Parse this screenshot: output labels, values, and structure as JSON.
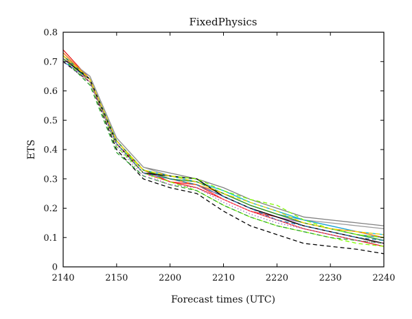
{
  "chart_data": {
    "type": "line",
    "title": "FixedPhysics",
    "xlabel": "Forecast times (UTC)",
    "ylabel": "ETS",
    "xlim": [
      2140,
      2240
    ],
    "ylim": [
      0,
      0.8
    ],
    "xticks": [
      "2140",
      "2150",
      "2200",
      "2210",
      "2220",
      "2230",
      "2240"
    ],
    "yticks": [
      "0",
      "0.1",
      "0.2",
      "0.3",
      "0.4",
      "0.5",
      "0.6",
      "0.7",
      "0.8"
    ],
    "grid": false,
    "legend": "none",
    "x": [
      "2140",
      "2145",
      "2150",
      "2155",
      "2200",
      "2205",
      "2210",
      "2215",
      "2220",
      "2225",
      "2230",
      "2235",
      "2240"
    ],
    "series": [
      {
        "color": "#e41a1c",
        "dash": "solid",
        "values": [
          0.74,
          0.64,
          0.43,
          0.33,
          0.29,
          0.27,
          0.23,
          0.19,
          0.16,
          0.13,
          0.11,
          0.09,
          0.07
        ]
      },
      {
        "color": "#d62728",
        "dash": "solid",
        "values": [
          0.73,
          0.64,
          0.42,
          0.33,
          0.3,
          0.28,
          0.24,
          0.2,
          0.17,
          0.14,
          0.12,
          0.1,
          0.08
        ]
      },
      {
        "color": "#ff3030",
        "dash": "solid",
        "values": [
          0.72,
          0.63,
          0.42,
          0.32,
          0.29,
          0.28,
          0.23,
          0.19,
          0.17,
          0.14,
          0.12,
          0.1,
          0.08
        ]
      },
      {
        "color": "#808080",
        "dash": "solid",
        "values": [
          0.71,
          0.65,
          0.44,
          0.34,
          0.32,
          0.3,
          0.27,
          0.23,
          0.2,
          0.17,
          0.16,
          0.15,
          0.14
        ]
      },
      {
        "color": "#999999",
        "dash": "solid",
        "values": [
          0.72,
          0.65,
          0.44,
          0.34,
          0.31,
          0.29,
          0.26,
          0.22,
          0.19,
          0.16,
          0.15,
          0.14,
          0.13
        ]
      },
      {
        "color": "#17becf",
        "dash": "solid",
        "values": [
          0.71,
          0.64,
          0.43,
          0.33,
          0.31,
          0.29,
          0.26,
          0.22,
          0.19,
          0.16,
          0.14,
          0.12,
          0.11
        ]
      },
      {
        "color": "#1f9fd6",
        "dash": "solid",
        "values": [
          0.7,
          0.64,
          0.43,
          0.33,
          0.31,
          0.29,
          0.25,
          0.21,
          0.18,
          0.16,
          0.14,
          0.12,
          0.1
        ]
      },
      {
        "color": "#1f77b4",
        "dash": "solid",
        "values": [
          0.72,
          0.64,
          0.43,
          0.33,
          0.3,
          0.29,
          0.25,
          0.21,
          0.18,
          0.15,
          0.13,
          0.11,
          0.1
        ]
      },
      {
        "color": "#9467bd",
        "dash": "solid",
        "values": [
          0.71,
          0.64,
          0.42,
          0.32,
          0.3,
          0.28,
          0.24,
          0.2,
          0.17,
          0.15,
          0.13,
          0.11,
          0.09
        ]
      },
      {
        "color": "#ff7f0e",
        "dash": "solid",
        "values": [
          0.73,
          0.64,
          0.43,
          0.33,
          0.3,
          0.28,
          0.25,
          0.21,
          0.18,
          0.15,
          0.13,
          0.12,
          0.1
        ]
      },
      {
        "color": "#2ca02c",
        "dash": "solid",
        "values": [
          0.72,
          0.64,
          0.43,
          0.33,
          0.3,
          0.29,
          0.25,
          0.21,
          0.18,
          0.15,
          0.13,
          0.11,
          0.09
        ]
      },
      {
        "color": "#000000",
        "dash": "solid",
        "values": [
          0.71,
          0.64,
          0.42,
          0.32,
          0.31,
          0.3,
          0.24,
          0.2,
          0.17,
          0.14,
          0.12,
          0.1,
          0.08
        ]
      },
      {
        "color": "#000000",
        "dash": "dashed",
        "values": [
          0.7,
          0.63,
          0.4,
          0.3,
          0.27,
          0.25,
          0.19,
          0.14,
          0.11,
          0.08,
          0.07,
          0.06,
          0.045
        ]
      },
      {
        "color": "#7fff00",
        "dash": "dashed",
        "values": [
          0.72,
          0.64,
          0.42,
          0.33,
          0.31,
          0.3,
          0.26,
          0.23,
          0.21,
          0.16,
          0.13,
          0.11,
          0.1
        ]
      },
      {
        "color": "#7fff00",
        "dash": "dashed",
        "values": [
          0.71,
          0.63,
          0.41,
          0.32,
          0.29,
          0.26,
          0.21,
          0.17,
          0.14,
          0.12,
          0.1,
          0.08,
          0.07
        ]
      },
      {
        "color": "#2ca02c",
        "dash": "dashed",
        "values": [
          0.71,
          0.62,
          0.39,
          0.31,
          0.28,
          0.26,
          0.21,
          0.17,
          0.14,
          0.12,
          0.1,
          0.09,
          0.08
        ]
      },
      {
        "color": "#1f77b4",
        "dash": "dashed",
        "values": [
          0.72,
          0.64,
          0.42,
          0.32,
          0.3,
          0.28,
          0.24,
          0.2,
          0.16,
          0.14,
          0.12,
          0.1,
          0.09
        ]
      },
      {
        "color": "#e377c2",
        "dash": "dotted",
        "values": [
          0.71,
          0.63,
          0.42,
          0.32,
          0.28,
          0.27,
          0.23,
          0.19,
          0.16,
          0.13,
          0.11,
          0.09,
          0.08
        ]
      },
      {
        "color": "#9467bd",
        "dash": "dotted",
        "values": [
          0.7,
          0.63,
          0.41,
          0.31,
          0.28,
          0.27,
          0.22,
          0.18,
          0.15,
          0.13,
          0.11,
          0.09,
          0.08
        ]
      },
      {
        "color": "#ffd700",
        "dash": "dashed",
        "values": [
          0.72,
          0.64,
          0.43,
          0.33,
          0.31,
          0.29,
          0.25,
          0.22,
          0.19,
          0.15,
          0.13,
          0.12,
          0.11
        ]
      }
    ]
  }
}
